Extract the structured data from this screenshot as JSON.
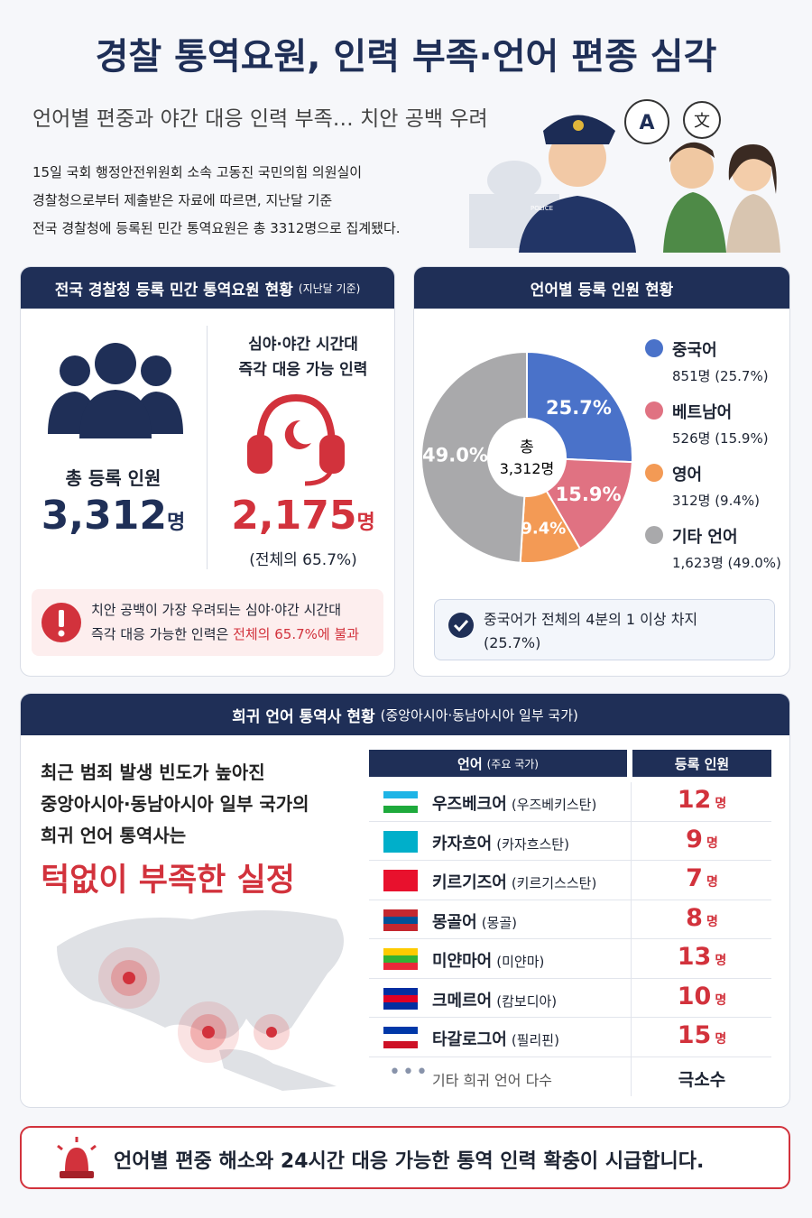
{
  "header": {
    "title": "경찰 통역요원, 인력 부족·언어 편종 심각",
    "subtitle": "언어별 편중과 야간 대응 인력 부족… 치안 공백 우려",
    "body": [
      "15일 국회 행정안전위원회 소속 고동진 국민의힘 의원실이",
      "경찰청으로부터 제출받은 자료에 따르면, 지난달 기준",
      "전국 경찰청에 등록된 민간 통역요원은 총 3312명으로 집계됐다."
    ],
    "bubble_labels": [
      "A",
      "文"
    ],
    "badge": "POLICE"
  },
  "status_panel": {
    "title": "전국 경찰청 등록 민간 통역요원 현황",
    "title_note": "(지난달 기준)",
    "total_label": "총 등록 인원",
    "total_value": "3,312",
    "total_unit": "명",
    "night_label": [
      "심야·야간 시간대",
      "즉각 대응 가능 인력"
    ],
    "night_value": "2,175",
    "night_unit": "명",
    "night_share": "(전체의 65.7%)",
    "alert": [
      "치안 공백이 가장 우려되는 심야·야간 시간대",
      "즉각 대응 가능한 인력은 ",
      "전체의 65.7%에 불과"
    ]
  },
  "language_chart": {
    "type": "pie",
    "title": "언어별 등록 인원 현황",
    "center_label": [
      "총",
      "3,312명"
    ],
    "categories": [
      "중국어",
      "베트남어",
      "영어",
      "기타 언어"
    ],
    "values": [
      25.7,
      15.9,
      9.4,
      49.0
    ],
    "value_labels": [
      "25.7%",
      "15.9%",
      "9.4%",
      "49.0%"
    ],
    "details": [
      "851명 (25.7%)",
      "526명 (15.9%)",
      "312명 (9.4%)",
      "1,623명 (49.0%)"
    ],
    "colors": [
      "#4a72c9",
      "#e07282",
      "#f39a55",
      "#a9a9ab"
    ],
    "note": [
      "중국어가 전체의 4분의 1 이상 차지",
      "(25.7%)"
    ]
  },
  "rare_panel": {
    "title": "희귀 언어 통역사 현황",
    "title_note": "(중앙아시아·동남아시아 일부 국가)",
    "lines": [
      "최근 범죄 발생 빈도가 높아진",
      "중앙아시아·동남아시아 일부 국가의",
      "희귀 언어 통역사는"
    ],
    "emphasis": "턱없이 부족한 실정",
    "table": {
      "header_language": "언어",
      "header_language_note": "(주요 국가)",
      "header_count": "등록 인원",
      "rows": [
        {
          "language": "우즈베크어",
          "country": "(우즈베키스탄)",
          "count": "12",
          "unit": "명"
        },
        {
          "language": "카자흐어",
          "country": "(카자흐스탄)",
          "count": "9",
          "unit": "명"
        },
        {
          "language": "키르기즈어",
          "country": "(키르기스스탄)",
          "count": "7",
          "unit": "명"
        },
        {
          "language": "몽골어",
          "country": "(몽골)",
          "count": "8",
          "unit": "명"
        },
        {
          "language": "미얀마어",
          "country": "(미얀마)",
          "count": "13",
          "unit": "명"
        },
        {
          "language": "크메르어",
          "country": "(캄보디아)",
          "count": "10",
          "unit": "명"
        },
        {
          "language": "타갈로그어",
          "country": "(필리핀)",
          "count": "15",
          "unit": "명"
        }
      ],
      "other_label": "기타 희귀 언어 다수",
      "other_count": "극소수"
    }
  },
  "footer": {
    "message": "언어별 편중 해소와 24시간 대응 가능한 통역 인력 확충이 시급합니다."
  }
}
